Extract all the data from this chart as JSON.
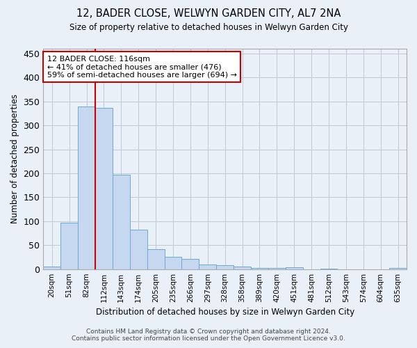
{
  "title": "12, BADER CLOSE, WELWYN GARDEN CITY, AL7 2NA",
  "subtitle": "Size of property relative to detached houses in Welwyn Garden City",
  "xlabel": "Distribution of detached houses by size in Welwyn Garden City",
  "ylabel": "Number of detached properties",
  "footnote1": "Contains HM Land Registry data © Crown copyright and database right 2024.",
  "footnote2": "Contains public sector information licensed under the Open Government Licence v3.0.",
  "categories": [
    "20sqm",
    "51sqm",
    "82sqm",
    "112sqm",
    "143sqm",
    "174sqm",
    "205sqm",
    "235sqm",
    "266sqm",
    "297sqm",
    "328sqm",
    "358sqm",
    "389sqm",
    "420sqm",
    "451sqm",
    "481sqm",
    "512sqm",
    "543sqm",
    "574sqm",
    "604sqm",
    "635sqm"
  ],
  "values": [
    5,
    97,
    340,
    336,
    197,
    83,
    42,
    25,
    22,
    10,
    8,
    5,
    3,
    2,
    4,
    0,
    1,
    0,
    0,
    0,
    2
  ],
  "bar_color": "#c5d8f0",
  "bar_edge_color": "#6aaad4",
  "grid_color": "#c0c8d8",
  "background_color": "#eaf0f8",
  "property_line_x": 2.5,
  "annotation_text": "12 BADER CLOSE: 116sqm\n← 41% of detached houses are smaller (476)\n59% of semi-detached houses are larger (694) →",
  "annotation_box_color": "#ffffff",
  "annotation_box_edge": "#cc0000",
  "vline_color": "#cc0000",
  "ylim_max": 460,
  "xlim_min": -0.5,
  "xlim_max": 20.5,
  "yticks": [
    0,
    50,
    100,
    150,
    200,
    250,
    300,
    350,
    400,
    450
  ]
}
